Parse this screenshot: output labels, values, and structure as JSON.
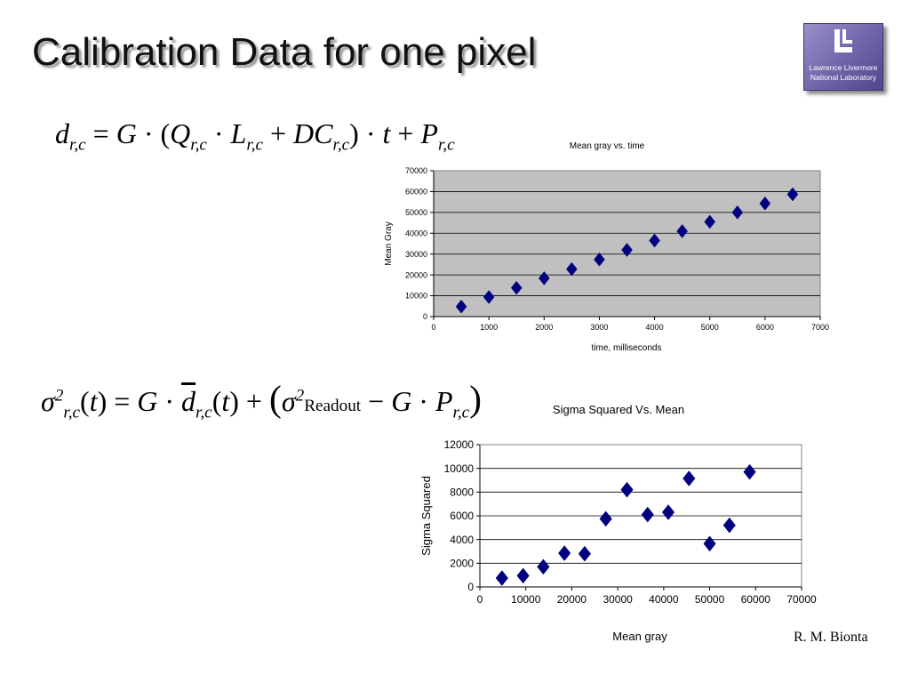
{
  "slide": {
    "title": "Calibration Data for one pixel",
    "credit": "R. M. Bionta"
  },
  "logo": {
    "line1": "Lawrence Livermore",
    "line2": "National Laboratory",
    "icon": "llnl-logo-icon"
  },
  "equations": {
    "eq1": {
      "lhs": "d",
      "sub_rc": "r,c",
      "G": "G",
      "Q": "Q",
      "L": "L",
      "DC": "DC",
      "t": "t",
      "P": "P"
    },
    "eq2": {
      "sigma": "σ",
      "sup2": "2",
      "sub_rc": "r,c",
      "t": "t",
      "G": "G",
      "dbar": "d",
      "readout": "Readout",
      "P": "P"
    }
  },
  "chart_data": [
    {
      "type": "scatter",
      "title": "Mean gray vs. time",
      "xlabel": "time, milliseconds",
      "ylabel": "Mean Gray",
      "xlim": [
        0,
        7000
      ],
      "ylim": [
        0,
        70000
      ],
      "xticks": [
        0,
        1000,
        2000,
        3000,
        4000,
        5000,
        6000,
        7000
      ],
      "yticks": [
        0,
        10000,
        20000,
        30000,
        40000,
        50000,
        60000,
        70000
      ],
      "grid": true,
      "plot_background": "#c0c0c0",
      "marker_color": "#000080",
      "marker": "diamond",
      "x": [
        500,
        1000,
        1500,
        2000,
        2500,
        3000,
        3500,
        4000,
        4500,
        5000,
        5500,
        6000,
        6500
      ],
      "y": [
        4800,
        9400,
        13800,
        18400,
        22800,
        27400,
        32000,
        36500,
        41000,
        45500,
        50000,
        54300,
        58700
      ]
    },
    {
      "type": "scatter",
      "title": "Sigma Squared Vs. Mean",
      "xlabel": "Mean gray",
      "ylabel": "Sigma Squared",
      "xlim": [
        0,
        70000
      ],
      "ylim": [
        0,
        12000
      ],
      "xticks": [
        0,
        10000,
        20000,
        30000,
        40000,
        50000,
        60000,
        70000
      ],
      "yticks": [
        0,
        2000,
        4000,
        6000,
        8000,
        10000,
        12000
      ],
      "grid": true,
      "plot_background": "#ffffff",
      "marker_color": "#000080",
      "marker": "diamond",
      "x": [
        4800,
        9400,
        13800,
        18400,
        22800,
        27400,
        32000,
        36500,
        41000,
        45500,
        50000,
        54300,
        58700
      ],
      "y": [
        750,
        950,
        1700,
        2850,
        2800,
        5750,
        8200,
        6100,
        6300,
        9150,
        3650,
        5200,
        9700
      ]
    }
  ]
}
